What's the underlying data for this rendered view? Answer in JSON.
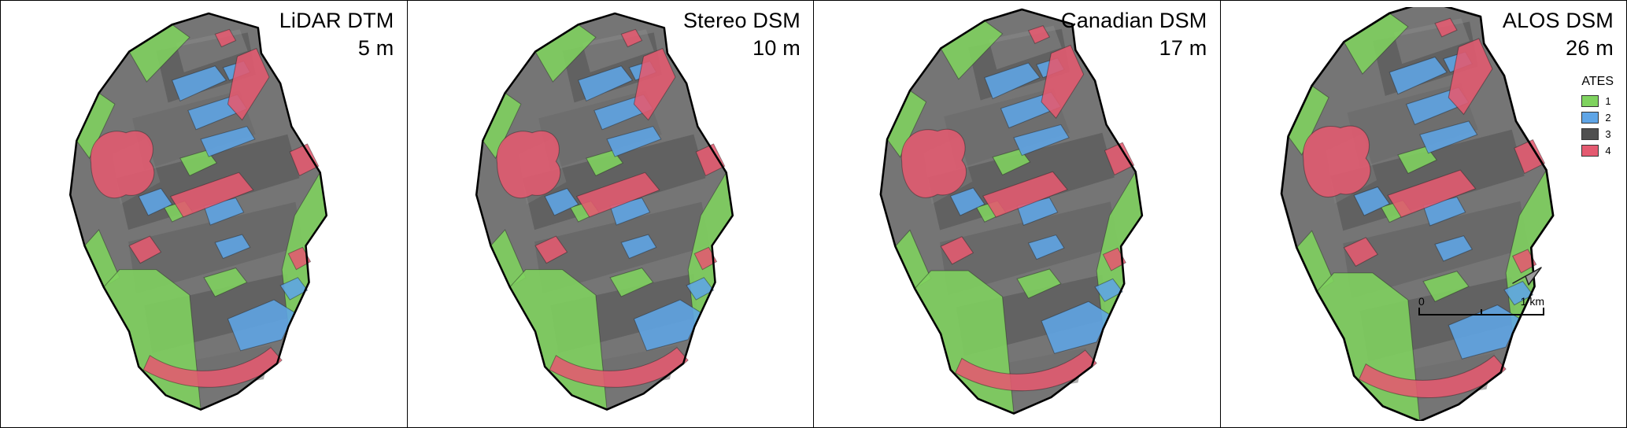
{
  "figure": {
    "panels": [
      {
        "title": "LiDAR DTM",
        "resolution": "5 m"
      },
      {
        "title": "Stereo DSM",
        "resolution": "10 m"
      },
      {
        "title": "Canadian DSM",
        "resolution": "17 m"
      },
      {
        "title": "ALOS DSM",
        "resolution": "26 m"
      }
    ],
    "legend": {
      "title": "ATES",
      "items": [
        {
          "label": "1",
          "color": "#7fd35f"
        },
        {
          "label": "2",
          "color": "#5fa5e6"
        },
        {
          "label": "3",
          "color": "#4f4f4f"
        },
        {
          "label": "4",
          "color": "#e45a70"
        }
      ]
    },
    "scalebar": {
      "start": "0",
      "end": "1 km"
    },
    "map_colors": {
      "green": "#7fd35f",
      "blue": "#5fa5e6",
      "gray": "#4f4f4f",
      "red": "#e45a70",
      "hillshade": "#757575",
      "outline": "#000000"
    }
  }
}
